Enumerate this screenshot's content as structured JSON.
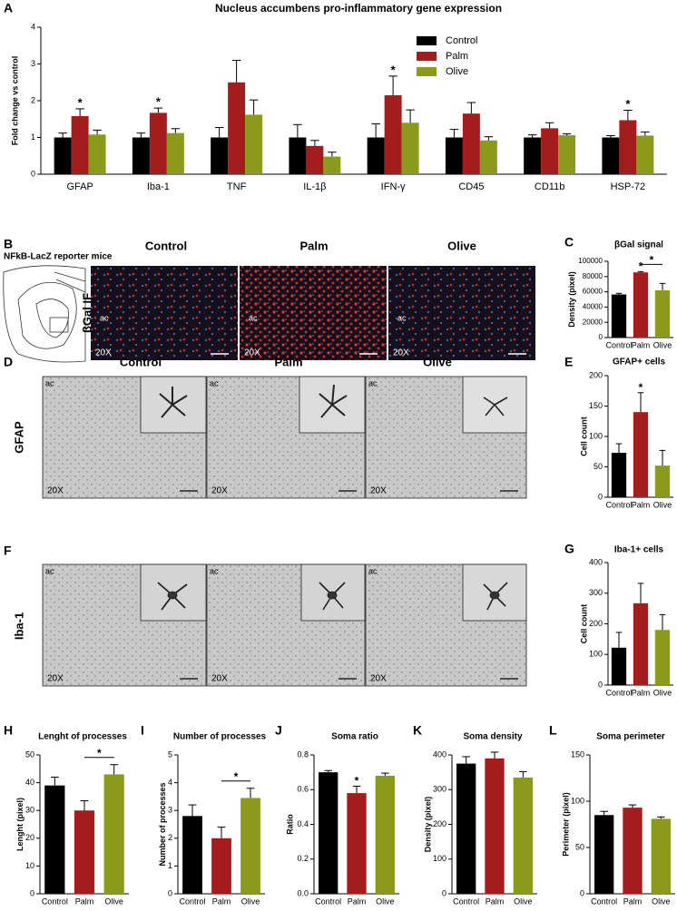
{
  "figure": {
    "panels": [
      "A",
      "B",
      "C",
      "D",
      "E",
      "F",
      "G",
      "H",
      "I",
      "J",
      "K",
      "L"
    ],
    "reporter": "NFkB-LacZ reporter mice",
    "B_columns": [
      "Control",
      "Palm",
      "Olive"
    ],
    "stain_B": "βGal IF",
    "D_columns": [
      "Control",
      "Palm",
      "Olive"
    ],
    "stain_D": "GFAP",
    "stain_F": "Iba-1",
    "region": "ac",
    "magnification": "20X"
  },
  "chart_data": [
    {
      "type": "grouped_bar",
      "title": "Nucleus accumbens pro-inflammatory gene expression",
      "ylabel": "Fold change vs control",
      "categories": [
        "GFAP",
        "Iba-1",
        "TNF",
        "IL-1β",
        "IFN-γ",
        "CD45",
        "CD11b",
        "HSP-72"
      ],
      "series": [
        {
          "name": "Control",
          "color": "#000000",
          "values": [
            1,
            1,
            1,
            1,
            1,
            1,
            1,
            1
          ],
          "errors": [
            0.12,
            0.12,
            0.27,
            0.35,
            0.37,
            0.22,
            0.07,
            0.05
          ]
        },
        {
          "name": "Palm",
          "color": "#a31d1d",
          "values": [
            1.58,
            1.67,
            2.5,
            0.77,
            2.15,
            1.65,
            1.25,
            1.47
          ],
          "errors": [
            0.2,
            0.13,
            0.6,
            0.15,
            0.52,
            0.3,
            0.15,
            0.27
          ]
        },
        {
          "name": "Olive",
          "color": "#8c9a1c",
          "values": [
            1.08,
            1.12,
            1.62,
            0.48,
            1.4,
            0.92,
            1.06,
            1.05
          ],
          "errors": [
            0.12,
            0.12,
            0.4,
            0.12,
            0.35,
            0.1,
            0.04,
            0.1
          ]
        }
      ],
      "ylim": [
        0,
        4
      ],
      "yticks": [
        0,
        1,
        2,
        3,
        4
      ],
      "legend": "upper right",
      "annotations": [
        {
          "label": "*",
          "category": 0,
          "series": 1
        },
        {
          "label": "*",
          "category": 1,
          "series": 1
        },
        {
          "label": "*",
          "category": 4,
          "series": 1
        },
        {
          "label": "*",
          "category": 7,
          "series": 1
        }
      ]
    },
    {
      "type": "bar",
      "title": "βGal signal",
      "ylabel": "Density (pixel)",
      "categories": [
        "Control",
        "Palm",
        "Olive"
      ],
      "colors": [
        "#000000",
        "#a31d1d",
        "#8c9a1c"
      ],
      "values": [
        56500,
        85500,
        62000
      ],
      "errors": [
        1500,
        1000,
        9000
      ],
      "ylim": [
        0,
        100000
      ],
      "yticks": [
        0,
        20000,
        40000,
        60000,
        80000,
        100000
      ],
      "annotations": [
        {
          "label": "*",
          "bar": 1
        }
      ],
      "brackets": [
        {
          "label": "*",
          "from": 1,
          "to": 2
        }
      ]
    },
    {
      "type": "bar",
      "title": "GFAP+ cells",
      "ylabel": "Cell count",
      "categories": [
        "Control",
        "Palm",
        "Olive"
      ],
      "colors": [
        "#000000",
        "#a31d1d",
        "#8c9a1c"
      ],
      "values": [
        73,
        140,
        52
      ],
      "errors": [
        15,
        32,
        25
      ],
      "ylim": [
        0,
        200
      ],
      "yticks": [
        0,
        50,
        100,
        150,
        200
      ],
      "annotations": [
        {
          "label": "*",
          "bar": 1
        }
      ]
    },
    {
      "type": "bar",
      "title": "Iba-1+ cells",
      "ylabel": "Cell count",
      "categories": [
        "Control",
        "Palm",
        "Olive"
      ],
      "colors": [
        "#000000",
        "#a31d1d",
        "#8c9a1c"
      ],
      "values": [
        122,
        267,
        180
      ],
      "errors": [
        50,
        65,
        50
      ],
      "ylim": [
        0,
        400
      ],
      "yticks": [
        0,
        100,
        200,
        300,
        400
      ]
    },
    {
      "type": "bar",
      "title": "Lenght of processes",
      "ylabel": "Lenght (pixel)",
      "categories": [
        "Control",
        "Palm",
        "Olive"
      ],
      "colors": [
        "#000000",
        "#a31d1d",
        "#8c9a1c"
      ],
      "values": [
        39,
        30,
        43
      ],
      "errors": [
        3,
        3.5,
        3.5
      ],
      "ylim": [
        0,
        50
      ],
      "yticks": [
        0,
        10,
        20,
        30,
        40,
        50
      ],
      "brackets": [
        {
          "label": "*",
          "from": 1,
          "to": 2
        }
      ]
    },
    {
      "type": "bar",
      "title": "Number of processes",
      "ylabel": "Number of processes",
      "categories": [
        "Control",
        "Palm",
        "Olive"
      ],
      "colors": [
        "#000000",
        "#a31d1d",
        "#8c9a1c"
      ],
      "values": [
        2.8,
        2.0,
        3.45
      ],
      "errors": [
        0.4,
        0.4,
        0.35
      ],
      "ylim": [
        0,
        5
      ],
      "yticks": [
        0,
        1,
        2,
        3,
        4,
        5
      ],
      "brackets": [
        {
          "label": "*",
          "from": 1,
          "to": 2
        }
      ]
    },
    {
      "type": "bar",
      "title": "Soma ratio",
      "ylabel": "Ratio",
      "categories": [
        "Control",
        "Palm",
        "Olive"
      ],
      "colors": [
        "#000000",
        "#a31d1d",
        "#8c9a1c"
      ],
      "values": [
        0.7,
        0.58,
        0.68
      ],
      "errors": [
        0.01,
        0.04,
        0.015
      ],
      "ylim": [
        0,
        0.8
      ],
      "yticks": [
        {
          "value": 0,
          "label": "0.0"
        },
        0.2,
        0.4,
        0.6,
        0.8
      ],
      "annotations": [
        {
          "label": "*",
          "bar": 1
        }
      ]
    },
    {
      "type": "bar",
      "title": "Soma density",
      "ylabel": "Density (pixel)",
      "categories": [
        "Control",
        "Palm",
        "Olive"
      ],
      "colors": [
        "#000000",
        "#a31d1d",
        "#8c9a1c"
      ],
      "values": [
        375,
        390,
        335
      ],
      "errors": [
        20,
        18,
        17
      ],
      "ylim": [
        0,
        400
      ],
      "yticks": [
        0,
        100,
        200,
        300,
        400
      ]
    },
    {
      "type": "bar",
      "title": "Soma perimeter",
      "ylabel": "Perimeter (pixel)",
      "categories": [
        "Control",
        "Palm",
        "Olive"
      ],
      "colors": [
        "#000000",
        "#a31d1d",
        "#8c9a1c"
      ],
      "values": [
        85,
        93,
        81
      ],
      "errors": [
        4,
        3,
        2
      ],
      "ylim": [
        0,
        150
      ],
      "yticks": [
        0,
        50,
        100,
        150
      ]
    }
  ]
}
